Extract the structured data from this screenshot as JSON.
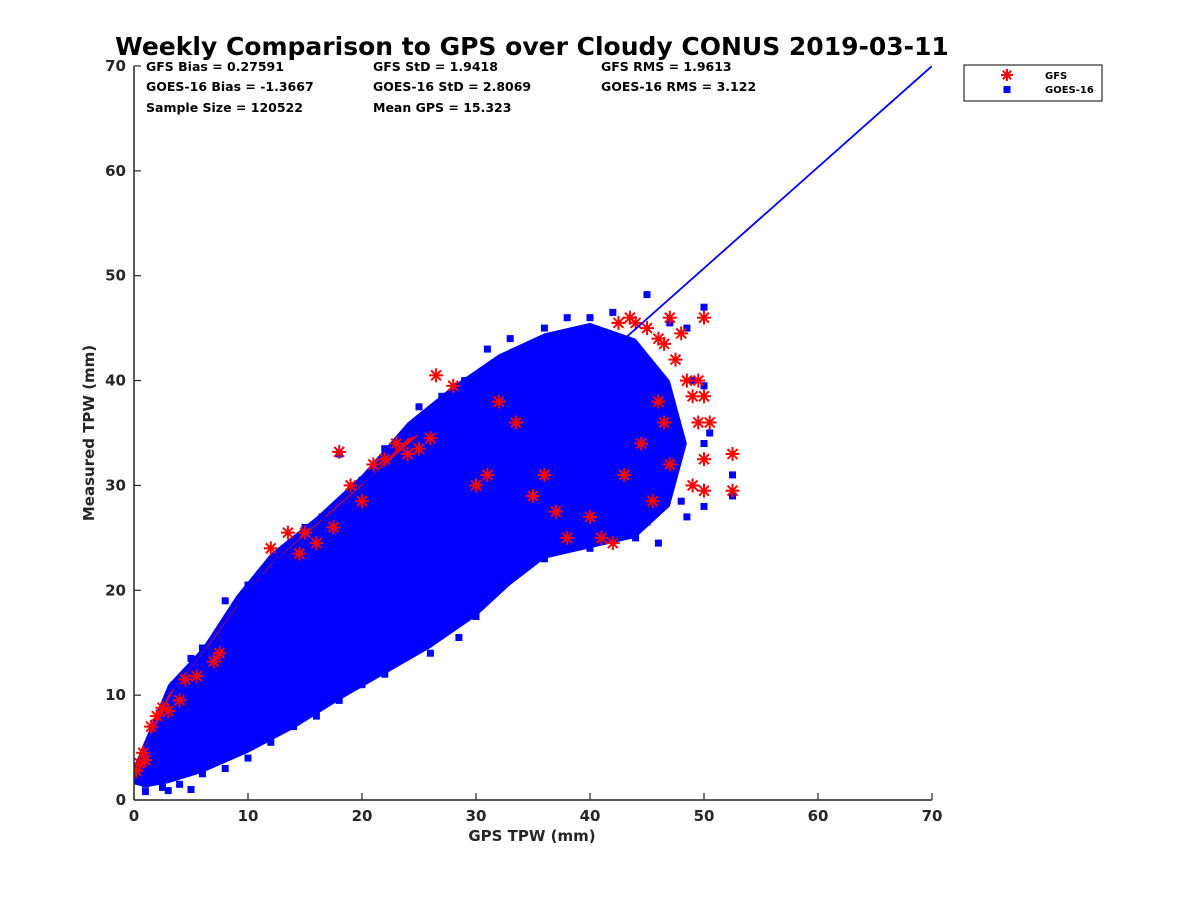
{
  "chart_data": {
    "type": "scatter",
    "title": "Weekly Comparison to GPS over Cloudy CONUS 2019-03-11",
    "xlabel": "GPS TPW (mm)",
    "ylabel": "Measured TPW (mm)",
    "xlim": [
      0,
      70
    ],
    "ylim": [
      0,
      70
    ],
    "xticks": [
      "0",
      "10",
      "20",
      "30",
      "40",
      "50",
      "60",
      "70"
    ],
    "yticks": [
      "0",
      "10",
      "20",
      "30",
      "40",
      "50",
      "60",
      "70"
    ],
    "grid": false,
    "legend_position": "outside-top-right",
    "stats": [
      [
        "GFS Bias = 0.27591",
        "GFS StD = 1.9418",
        "GFS RMS = 1.9613"
      ],
      [
        "GOES-16 Bias = -1.3667",
        "GOES-16 StD = 2.8069",
        "GOES-16 RMS = 3.122"
      ],
      [
        "Sample Size = 120522",
        "Mean GPS = 15.323",
        ""
      ]
    ],
    "series": [
      {
        "name": "GFS",
        "marker": "asterisk",
        "color": "#ff0000",
        "points": [
          [
            0.2,
            2.8
          ],
          [
            0.5,
            3.5
          ],
          [
            0.8,
            4.5
          ],
          [
            1.0,
            3.8
          ],
          [
            1.5,
            7.0
          ],
          [
            2.0,
            8.0
          ],
          [
            2.5,
            8.8
          ],
          [
            3.0,
            8.5
          ],
          [
            4.0,
            9.5
          ],
          [
            4.5,
            11.5
          ],
          [
            5.5,
            11.8
          ],
          [
            7.0,
            13.2
          ],
          [
            7.5,
            14.0
          ],
          [
            12.0,
            24.0
          ],
          [
            13.5,
            25.5
          ],
          [
            14.5,
            23.5
          ],
          [
            15.0,
            25.5
          ],
          [
            16.0,
            24.5
          ],
          [
            17.5,
            26.0
          ],
          [
            18.0,
            33.2
          ],
          [
            19.0,
            30.0
          ],
          [
            20.0,
            28.5
          ],
          [
            21.0,
            32.0
          ],
          [
            22.0,
            32.5
          ],
          [
            23.0,
            34.0
          ],
          [
            24.0,
            33.0
          ],
          [
            25.0,
            33.5
          ],
          [
            26.0,
            34.5
          ],
          [
            26.5,
            40.5
          ],
          [
            28.0,
            39.5
          ],
          [
            30.0,
            30.0
          ],
          [
            31.0,
            31.0
          ],
          [
            32.0,
            38.0
          ],
          [
            33.5,
            36.0
          ],
          [
            35.0,
            29.0
          ],
          [
            36.0,
            31.0
          ],
          [
            37.0,
            27.5
          ],
          [
            38.0,
            25.0
          ],
          [
            40.0,
            27.0
          ],
          [
            41.0,
            25.0
          ],
          [
            42.0,
            24.5
          ],
          [
            42.5,
            45.5
          ],
          [
            43.5,
            46.0
          ],
          [
            44.0,
            45.5
          ],
          [
            45.0,
            45.0
          ],
          [
            46.0,
            44.0
          ],
          [
            46.5,
            43.5
          ],
          [
            47.0,
            46.0
          ],
          [
            48.0,
            44.5
          ],
          [
            47.5,
            42.0
          ],
          [
            48.5,
            40.0
          ],
          [
            49.0,
            38.5
          ],
          [
            49.5,
            40.0
          ],
          [
            49.5,
            36.0
          ],
          [
            50.0,
            38.5
          ],
          [
            50.0,
            32.5
          ],
          [
            50.0,
            29.5
          ],
          [
            50.5,
            36.0
          ],
          [
            49.0,
            30.0
          ],
          [
            50.0,
            46.0
          ],
          [
            52.5,
            33.0
          ],
          [
            52.5,
            29.5
          ],
          [
            46.5,
            36.0
          ],
          [
            47.0,
            32.0
          ],
          [
            45.5,
            28.5
          ],
          [
            44.5,
            34.0
          ],
          [
            46.0,
            38.0
          ],
          [
            43.0,
            31.0
          ]
        ]
      },
      {
        "name": "GOES-16",
        "marker": "square",
        "color": "#0000ff",
        "points": [
          [
            0.3,
            2.0
          ],
          [
            1.0,
            1.5
          ],
          [
            1.5,
            6.0
          ],
          [
            2.0,
            3.0
          ],
          [
            3.0,
            5.5
          ],
          [
            3.5,
            11.0
          ],
          [
            5.0,
            13.5
          ],
          [
            6.0,
            14.5
          ],
          [
            8.0,
            19.0
          ],
          [
            10.0,
            20.5
          ],
          [
            11.0,
            21.5
          ],
          [
            12.5,
            22.0
          ],
          [
            13.0,
            23.0
          ],
          [
            15.0,
            26.0
          ],
          [
            16.5,
            27.0
          ],
          [
            18.0,
            33.0
          ],
          [
            20.0,
            30.5
          ],
          [
            22.0,
            33.5
          ],
          [
            25.0,
            37.5
          ],
          [
            27.0,
            38.5
          ],
          [
            29.0,
            40.0
          ],
          [
            31.0,
            43.0
          ],
          [
            33.0,
            44.0
          ],
          [
            36.0,
            45.0
          ],
          [
            38.0,
            46.0
          ],
          [
            40.0,
            46.0
          ],
          [
            42.0,
            46.5
          ],
          [
            45.0,
            48.2
          ],
          [
            47.0,
            45.5
          ],
          [
            48.5,
            45.0
          ],
          [
            50.0,
            47.0
          ],
          [
            49.0,
            40.0
          ],
          [
            50.0,
            39.5
          ],
          [
            50.5,
            35.0
          ],
          [
            50.0,
            34.0
          ],
          [
            52.5,
            31.0
          ],
          [
            52.5,
            29.0
          ],
          [
            50.0,
            28.0
          ],
          [
            48.0,
            28.5
          ],
          [
            48.5,
            27.0
          ],
          [
            46.0,
            24.5
          ],
          [
            45.0,
            26.5
          ],
          [
            44.0,
            25.0
          ],
          [
            40.0,
            24.0
          ],
          [
            38.0,
            24.0
          ],
          [
            36.0,
            23.0
          ],
          [
            34.0,
            22.0
          ],
          [
            30.0,
            17.5
          ],
          [
            28.5,
            15.5
          ],
          [
            27.0,
            16.0
          ],
          [
            26.0,
            14.0
          ],
          [
            25.0,
            14.5
          ],
          [
            22.0,
            12.0
          ],
          [
            20.0,
            11.0
          ],
          [
            18.0,
            9.5
          ],
          [
            16.0,
            8.0
          ],
          [
            14.0,
            7.0
          ],
          [
            12.0,
            5.5
          ],
          [
            10.0,
            4.0
          ],
          [
            8.0,
            3.0
          ],
          [
            6.0,
            2.5
          ],
          [
            4.0,
            1.5
          ],
          [
            2.5,
            1.2
          ],
          [
            1.0,
            0.8
          ],
          [
            5.0,
            1.0
          ],
          [
            3.0,
            0.9
          ]
        ]
      },
      {
        "name": "",
        "type": "line",
        "color": "#0000ff",
        "points": [
          [
            42,
            43
          ],
          [
            70,
            70
          ]
        ]
      }
    ]
  }
}
